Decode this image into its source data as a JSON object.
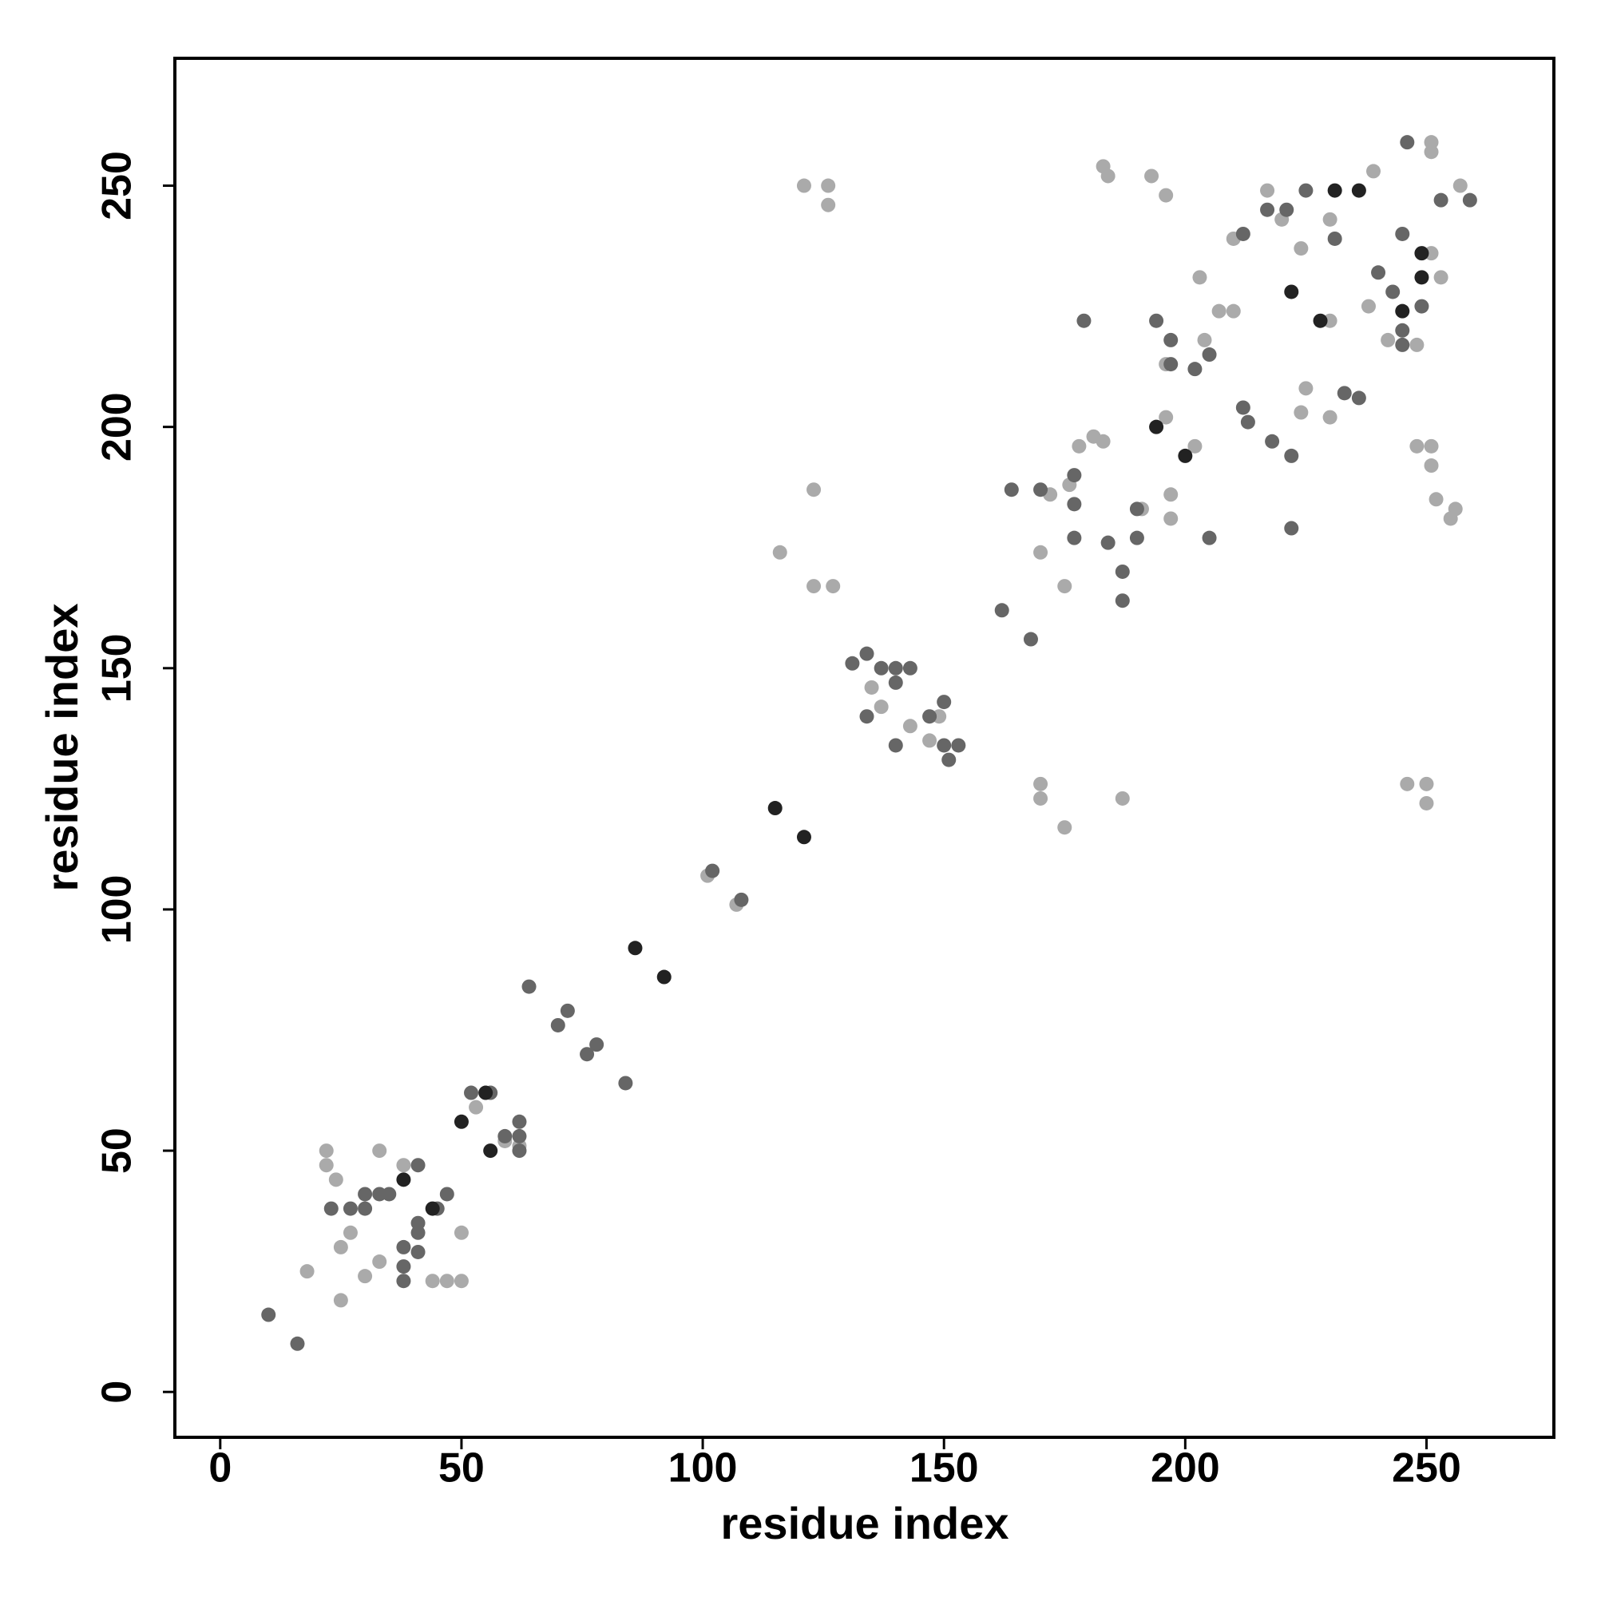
{
  "chart_data": {
    "type": "scatter",
    "xlabel": "residue index",
    "ylabel": "residue index",
    "xlim": [
      -9.4,
      276.4
    ],
    "ylim": [
      -9.4,
      276.4
    ],
    "xticks": [
      0,
      50,
      100,
      150,
      200,
      250
    ],
    "yticks": [
      0,
      50,
      100,
      150,
      200,
      250
    ],
    "series": [
      {
        "color": "#aaaaaa",
        "x": [
          18,
          25,
          22,
          22,
          24,
          25,
          27,
          33,
          30,
          33,
          47,
          50,
          44,
          50,
          38,
          53,
          59,
          62,
          101,
          107,
          135,
          137,
          143,
          147,
          149,
          116,
          123,
          123,
          127,
          121,
          126,
          126,
          170,
          170,
          175,
          187,
          246,
          250,
          250,
          170,
          175,
          172,
          176,
          181,
          178,
          183,
          183,
          184,
          193,
          196,
          197,
          196,
          202,
          191,
          197,
          196,
          204,
          207,
          210,
          203,
          210,
          217,
          220,
          224,
          225,
          224,
          230,
          230,
          230,
          239,
          238,
          242,
          248,
          251,
          251,
          248,
          251,
          251,
          252,
          255,
          256,
          257,
          251,
          253
        ],
        "values": [
          25,
          19,
          50,
          47,
          44,
          30,
          33,
          50,
          24,
          27,
          23,
          23,
          23,
          33,
          47,
          59,
          52,
          51,
          107,
          101,
          146,
          142,
          138,
          135,
          140,
          174,
          187,
          167,
          167,
          250,
          250,
          246,
          126,
          123,
          117,
          123,
          126,
          126,
          122,
          174,
          167,
          186,
          188,
          198,
          196,
          197,
          254,
          252,
          252,
          248,
          186,
          202,
          196,
          183,
          181,
          213,
          218,
          224,
          224,
          231,
          239,
          249,
          243,
          237,
          208,
          203,
          243,
          222,
          202,
          253,
          225,
          218,
          217,
          259,
          257,
          196,
          196,
          192,
          185,
          181,
          183,
          250,
          236,
          231
        ]
      },
      {
        "color": "#666666",
        "x": [
          10,
          16,
          23,
          27,
          30,
          33,
          35,
          30,
          38,
          38,
          41,
          41,
          41,
          38,
          41,
          47,
          45,
          52,
          56,
          62,
          62,
          62,
          59,
          64,
          84,
          72,
          70,
          78,
          76,
          102,
          108,
          134,
          137,
          140,
          143,
          140,
          134,
          140,
          147,
          150,
          150,
          153,
          151,
          131,
          162,
          168,
          164,
          170,
          177,
          177,
          184,
          187,
          187,
          190,
          190,
          177,
          179,
          194,
          197,
          197,
          205,
          202,
          205,
          212,
          212,
          213,
          218,
          222,
          222,
          217,
          221,
          225,
          231,
          233,
          236,
          245,
          249,
          246,
          245,
          240,
          243,
          245,
          253,
          259
        ],
        "values": [
          16,
          10,
          38,
          38,
          41,
          41,
          41,
          38,
          23,
          26,
          29,
          33,
          35,
          30,
          47,
          41,
          38,
          62,
          62,
          56,
          53,
          50,
          53,
          84,
          64,
          79,
          76,
          72,
          70,
          108,
          102,
          153,
          150,
          150,
          150,
          147,
          140,
          134,
          140,
          143,
          134,
          134,
          131,
          151,
          162,
          156,
          187,
          187,
          184,
          190,
          176,
          164,
          170,
          177,
          183,
          177,
          222,
          222,
          218,
          213,
          177,
          212,
          215,
          240,
          204,
          201,
          197,
          194,
          179,
          245,
          245,
          249,
          239,
          207,
          206,
          217,
          225,
          259,
          240,
          232,
          228,
          220,
          247,
          247
        ]
      },
      {
        "color": "#222222",
        "x": [
          115,
          121,
          86,
          92,
          50,
          56,
          38,
          44,
          200,
          194,
          231,
          236,
          222,
          228,
          249,
          249,
          245,
          55
        ],
        "values": [
          121,
          115,
          92,
          86,
          56,
          50,
          44,
          38,
          194,
          200,
          249,
          249,
          228,
          222,
          236,
          231,
          224,
          62
        ]
      }
    ]
  }
}
